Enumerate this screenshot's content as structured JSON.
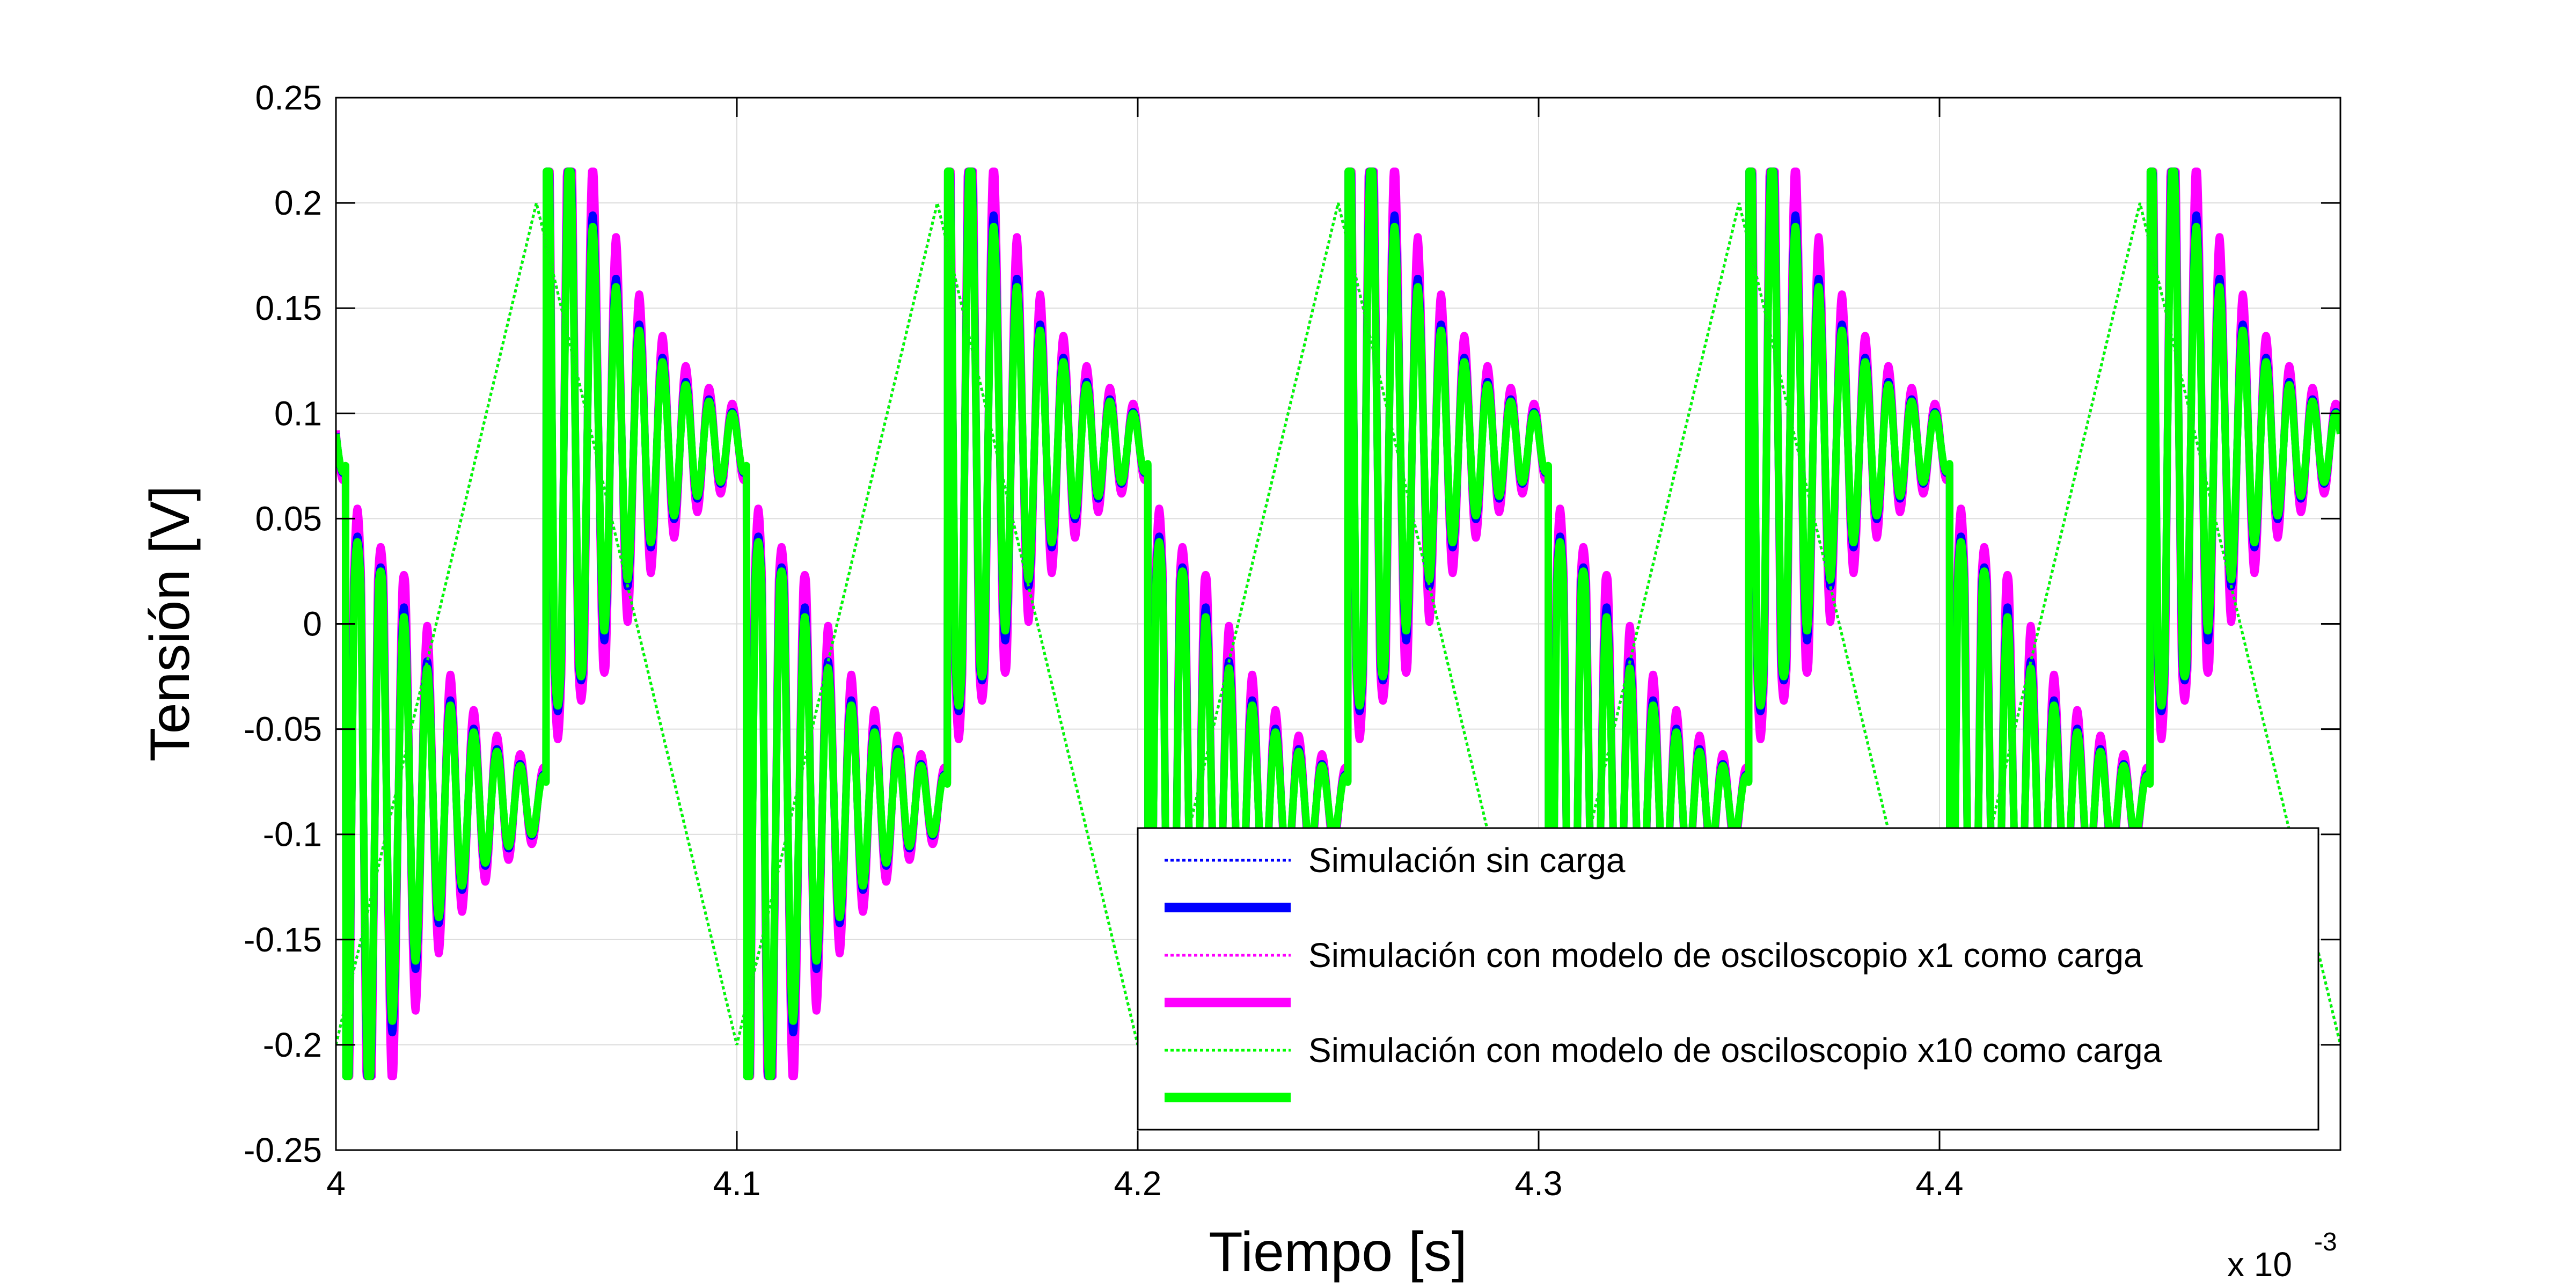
{
  "chart_data": {
    "type": "line",
    "title": "",
    "xlabel": "Tiempo [s]",
    "ylabel": "Tensión [V]",
    "x_multiplier_label": "x 10",
    "x_multiplier_exponent": "-3",
    "xlim": [
      4.0,
      4.5
    ],
    "ylim": [
      -0.25,
      0.25
    ],
    "xticks": [
      4.0,
      4.1,
      4.2,
      4.3,
      4.4
    ],
    "xtick_labels": [
      "4",
      "4.1",
      "4.2",
      "4.3",
      "4.4"
    ],
    "yticks": [
      -0.25,
      -0.2,
      -0.15,
      -0.1,
      -0.05,
      0,
      0.05,
      0.1,
      0.15,
      0.2,
      0.25
    ],
    "ytick_labels": [
      "-0.25",
      "-0.2",
      "-0.15",
      "-0.1",
      "-0.05",
      "0",
      "0.05",
      "0.1",
      "0.15",
      "0.2",
      "0.25"
    ],
    "grid": true,
    "legend_position": "bottom-right",
    "period": 0.1,
    "square_wave": {
      "note": "response has same shape each half period; low half mirrors high half",
      "high_start_offset": 0.0525,
      "low_start_offset": 0.0025,
      "settle_level": 0.085,
      "peak_level": 0.215,
      "ringing_period": 0.0058,
      "decay_time": 0.018
    },
    "triangle_wave": {
      "min": -0.2,
      "max": 0.2,
      "min_at": [
        4.0,
        4.1,
        4.2,
        4.3,
        4.4,
        4.5
      ],
      "max_at": [
        4.05,
        4.15,
        4.25,
        4.35,
        4.45
      ]
    },
    "series": [
      {
        "name": "Simulación sin carga",
        "color": "#0000ff",
        "style": "dotted",
        "kind": "triangle"
      },
      {
        "name": "",
        "color": "#0000ff",
        "style": "solid-thick",
        "kind": "square",
        "ring_gain": 1.0
      },
      {
        "name": "Simulación con modelo de osciloscopio x1 como carga",
        "color": "#ff00ff",
        "style": "dotted",
        "kind": "triangle"
      },
      {
        "name": "",
        "color": "#ff00ff",
        "style": "solid-thick",
        "kind": "square",
        "ring_gain": 1.25
      },
      {
        "name": "Simulación con modelo de osciloscopio x10 como carga",
        "color": "#00ff00",
        "style": "dotted",
        "kind": "triangle"
      },
      {
        "name": "",
        "color": "#00ff00",
        "style": "solid-thick",
        "kind": "square",
        "ring_gain": 0.95
      }
    ]
  }
}
